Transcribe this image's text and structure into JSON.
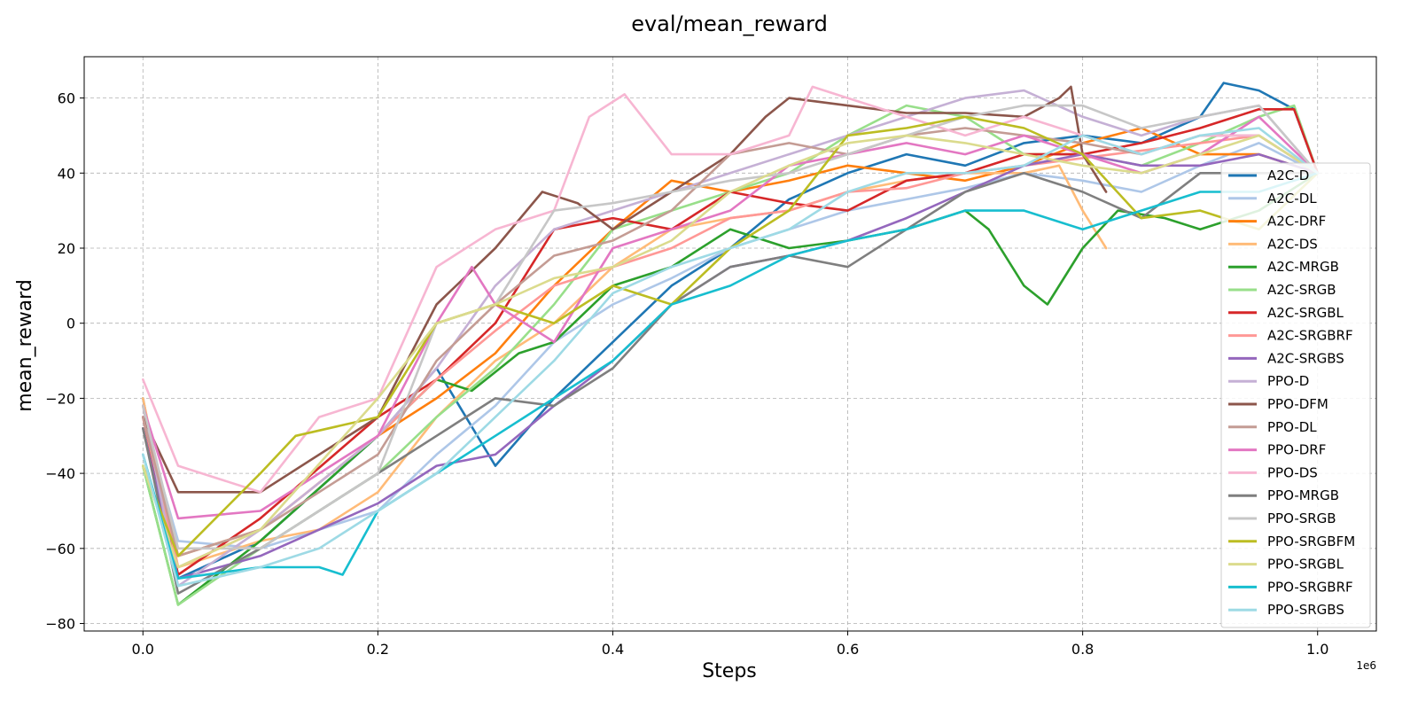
{
  "chart_data": {
    "type": "line",
    "title": "eval/mean_reward",
    "xlabel": "Steps",
    "ylabel": "mean_reward",
    "x_offset_text": "1e6",
    "xlim": [
      -0.05,
      1.05
    ],
    "ylim": [
      -82,
      71
    ],
    "xticks": [
      0.0,
      0.2,
      0.4,
      0.6,
      0.8,
      1.0
    ],
    "xtick_labels": [
      "0.0",
      "0.2",
      "0.4",
      "0.6",
      "0.8",
      "1.0"
    ],
    "yticks": [
      -80,
      -60,
      -40,
      -20,
      0,
      20,
      40,
      60
    ],
    "ytick_labels": [
      "−80",
      "−60",
      "−40",
      "−20",
      "0",
      "20",
      "40",
      "60"
    ],
    "grid": true,
    "legend_position": "right",
    "series": [
      {
        "name": "A2C-D",
        "color": "#1f77b4",
        "x": [
          0,
          0.03,
          0.1,
          0.2,
          0.25,
          0.3,
          0.35,
          0.4,
          0.45,
          0.5,
          0.55,
          0.6,
          0.65,
          0.7,
          0.75,
          0.8,
          0.85,
          0.9,
          0.92,
          0.95,
          0.98,
          1.0
        ],
        "y": [
          -20,
          -68,
          -58,
          -30,
          -12,
          -38,
          -20,
          -5,
          10,
          20,
          33,
          40,
          45,
          42,
          48,
          50,
          48,
          55,
          64,
          62,
          57,
          40
        ]
      },
      {
        "name": "A2C-DL",
        "color": "#aec7e8",
        "x": [
          0,
          0.03,
          0.1,
          0.2,
          0.25,
          0.3,
          0.35,
          0.4,
          0.45,
          0.5,
          0.55,
          0.6,
          0.65,
          0.7,
          0.75,
          0.8,
          0.85,
          0.9,
          0.95,
          1.0
        ],
        "y": [
          -25,
          -58,
          -60,
          -50,
          -35,
          -22,
          -5,
          5,
          12,
          20,
          25,
          30,
          33,
          36,
          40,
          38,
          35,
          42,
          48,
          40
        ]
      },
      {
        "name": "A2C-DRF",
        "color": "#ff7f0e",
        "x": [
          0,
          0.03,
          0.1,
          0.2,
          0.25,
          0.3,
          0.35,
          0.4,
          0.45,
          0.5,
          0.55,
          0.6,
          0.65,
          0.7,
          0.75,
          0.8,
          0.85,
          0.9,
          0.95,
          1.0
        ],
        "y": [
          -22,
          -62,
          -55,
          -30,
          -20,
          -8,
          10,
          25,
          38,
          35,
          38,
          42,
          40,
          38,
          42,
          48,
          52,
          45,
          45,
          40
        ]
      },
      {
        "name": "A2C-DS",
        "color": "#ffbb78",
        "x": [
          0,
          0.03,
          0.1,
          0.15,
          0.2,
          0.25,
          0.3,
          0.35,
          0.4,
          0.45,
          0.5,
          0.55,
          0.6,
          0.65,
          0.7,
          0.75,
          0.78,
          0.8,
          0.82
        ],
        "y": [
          -20,
          -65,
          -58,
          -55,
          -45,
          -25,
          -10,
          0,
          15,
          25,
          28,
          30,
          35,
          38,
          40,
          40,
          42,
          30,
          20
        ]
      },
      {
        "name": "A2C-MRGB",
        "color": "#2ca02c",
        "x": [
          0,
          0.03,
          0.1,
          0.2,
          0.25,
          0.28,
          0.32,
          0.35,
          0.4,
          0.45,
          0.5,
          0.55,
          0.6,
          0.65,
          0.7,
          0.72,
          0.75,
          0.77,
          0.8,
          0.83,
          0.87,
          0.9,
          0.95,
          1.0
        ],
        "y": [
          -38,
          -75,
          -58,
          -30,
          -15,
          -18,
          -8,
          -5,
          10,
          15,
          25,
          20,
          22,
          25,
          30,
          25,
          10,
          5,
          20,
          30,
          28,
          25,
          30,
          40
        ]
      },
      {
        "name": "A2C-SRGB",
        "color": "#98df8a",
        "x": [
          0,
          0.03,
          0.1,
          0.2,
          0.25,
          0.3,
          0.35,
          0.4,
          0.45,
          0.5,
          0.55,
          0.6,
          0.65,
          0.7,
          0.75,
          0.8,
          0.85,
          0.9,
          0.95,
          0.98,
          1.0
        ],
        "y": [
          -38,
          -75,
          -60,
          -40,
          -25,
          -12,
          5,
          25,
          30,
          35,
          40,
          50,
          58,
          55,
          45,
          45,
          42,
          48,
          55,
          58,
          40
        ]
      },
      {
        "name": "A2C-SRGBL",
        "color": "#d62728",
        "x": [
          0,
          0.03,
          0.1,
          0.2,
          0.25,
          0.3,
          0.35,
          0.4,
          0.45,
          0.5,
          0.55,
          0.6,
          0.65,
          0.7,
          0.75,
          0.8,
          0.85,
          0.9,
          0.95,
          0.98,
          1.0
        ],
        "y": [
          -25,
          -67,
          -52,
          -25,
          -15,
          0,
          25,
          28,
          25,
          35,
          32,
          30,
          38,
          40,
          45,
          45,
          48,
          52,
          57,
          57,
          40
        ]
      },
      {
        "name": "A2C-SRGBRF",
        "color": "#ff9896",
        "x": [
          0,
          0.03,
          0.1,
          0.2,
          0.25,
          0.3,
          0.35,
          0.4,
          0.45,
          0.5,
          0.55,
          0.6,
          0.65,
          0.7,
          0.75,
          0.8,
          0.85,
          0.9,
          0.95,
          1.0
        ],
        "y": [
          -25,
          -65,
          -55,
          -30,
          -15,
          -2,
          10,
          15,
          20,
          28,
          30,
          35,
          36,
          40,
          42,
          44,
          46,
          48,
          50,
          40
        ]
      },
      {
        "name": "A2C-SRGBS",
        "color": "#9467bd",
        "x": [
          0,
          0.03,
          0.1,
          0.2,
          0.25,
          0.3,
          0.35,
          0.4,
          0.45,
          0.5,
          0.55,
          0.6,
          0.65,
          0.7,
          0.75,
          0.8,
          0.85,
          0.9,
          0.95,
          1.0
        ],
        "y": [
          -28,
          -68,
          -62,
          -48,
          -38,
          -35,
          -22,
          -10,
          5,
          15,
          18,
          22,
          28,
          35,
          42,
          45,
          42,
          42,
          45,
          40
        ]
      },
      {
        "name": "PPO-D",
        "color": "#c5b0d5",
        "x": [
          0,
          0.03,
          0.1,
          0.2,
          0.25,
          0.3,
          0.35,
          0.4,
          0.45,
          0.5,
          0.55,
          0.6,
          0.65,
          0.7,
          0.75,
          0.8,
          0.85,
          0.9,
          0.95,
          1.0
        ],
        "y": [
          -22,
          -70,
          -55,
          -30,
          -12,
          10,
          25,
          30,
          35,
          40,
          45,
          50,
          55,
          60,
          62,
          55,
          50,
          55,
          58,
          40
        ]
      },
      {
        "name": "PPO-DFM",
        "color": "#8c564b",
        "x": [
          0,
          0.03,
          0.1,
          0.2,
          0.25,
          0.3,
          0.34,
          0.37,
          0.4,
          0.45,
          0.5,
          0.53,
          0.55,
          0.6,
          0.65,
          0.7,
          0.75,
          0.78,
          0.79,
          0.8,
          0.82
        ],
        "y": [
          -25,
          -45,
          -45,
          -25,
          5,
          20,
          35,
          32,
          25,
          35,
          45,
          55,
          60,
          58,
          56,
          56,
          55,
          60,
          63,
          45,
          35
        ]
      },
      {
        "name": "PPO-DL",
        "color": "#c49c94",
        "x": [
          0,
          0.03,
          0.1,
          0.2,
          0.25,
          0.3,
          0.35,
          0.4,
          0.45,
          0.5,
          0.55,
          0.6,
          0.65,
          0.7,
          0.75,
          0.8,
          0.85,
          0.9,
          0.95,
          1.0
        ],
        "y": [
          -25,
          -62,
          -55,
          -35,
          -10,
          5,
          18,
          22,
          30,
          45,
          48,
          45,
          50,
          52,
          50,
          48,
          45,
          50,
          50,
          40
        ]
      },
      {
        "name": "PPO-DRF",
        "color": "#e377c2",
        "x": [
          0,
          0.03,
          0.1,
          0.2,
          0.25,
          0.28,
          0.3,
          0.35,
          0.4,
          0.45,
          0.5,
          0.55,
          0.6,
          0.65,
          0.7,
          0.75,
          0.8,
          0.85,
          0.9,
          0.95,
          1.0
        ],
        "y": [
          -22,
          -52,
          -50,
          -30,
          0,
          15,
          5,
          -5,
          20,
          25,
          30,
          42,
          45,
          48,
          45,
          50,
          45,
          40,
          45,
          55,
          40
        ]
      },
      {
        "name": "PPO-DS",
        "color": "#f7b6d2",
        "x": [
          0,
          0.03,
          0.1,
          0.15,
          0.2,
          0.25,
          0.3,
          0.35,
          0.38,
          0.41,
          0.45,
          0.5,
          0.55,
          0.57,
          0.6,
          0.65,
          0.7,
          0.75,
          0.8,
          0.85,
          0.9,
          0.95,
          1.0
        ],
        "y": [
          -15,
          -38,
          -45,
          -25,
          -20,
          15,
          25,
          30,
          55,
          61,
          45,
          45,
          50,
          63,
          60,
          55,
          50,
          55,
          50,
          45,
          50,
          50,
          40
        ]
      },
      {
        "name": "PPO-MRGB",
        "color": "#7f7f7f",
        "x": [
          0,
          0.03,
          0.1,
          0.2,
          0.25,
          0.3,
          0.35,
          0.4,
          0.45,
          0.5,
          0.55,
          0.6,
          0.65,
          0.7,
          0.75,
          0.8,
          0.85,
          0.9,
          0.95,
          1.0
        ],
        "y": [
          -28,
          -72,
          -60,
          -40,
          -30,
          -20,
          -22,
          -12,
          5,
          15,
          18,
          15,
          25,
          35,
          40,
          35,
          28,
          40,
          40,
          40
        ]
      },
      {
        "name": "PPO-SRGB",
        "color": "#c7c7c7",
        "x": [
          0,
          0.03,
          0.1,
          0.2,
          0.25,
          0.3,
          0.35,
          0.4,
          0.45,
          0.5,
          0.55,
          0.6,
          0.65,
          0.7,
          0.75,
          0.8,
          0.85,
          0.9,
          0.95,
          1.0
        ],
        "y": [
          -22,
          -60,
          -60,
          -40,
          0,
          5,
          30,
          32,
          35,
          38,
          40,
          45,
          50,
          55,
          58,
          58,
          52,
          55,
          58,
          40
        ]
      },
      {
        "name": "PPO-SRGBFM",
        "color": "#bcbd22",
        "x": [
          0,
          0.03,
          0.1,
          0.13,
          0.2,
          0.25,
          0.3,
          0.35,
          0.4,
          0.45,
          0.5,
          0.55,
          0.6,
          0.65,
          0.7,
          0.75,
          0.8,
          0.85,
          0.9,
          0.95,
          1.0
        ],
        "y": [
          -38,
          -62,
          -40,
          -30,
          -25,
          0,
          5,
          0,
          10,
          5,
          20,
          30,
          50,
          52,
          55,
          52,
          45,
          28,
          30,
          25,
          40
        ]
      },
      {
        "name": "PPO-SRGBL",
        "color": "#dbdb8d",
        "x": [
          0,
          0.03,
          0.1,
          0.2,
          0.25,
          0.3,
          0.35,
          0.4,
          0.45,
          0.5,
          0.55,
          0.6,
          0.65,
          0.7,
          0.75,
          0.8,
          0.85,
          0.9,
          0.95,
          1.0
        ],
        "y": [
          -38,
          -65,
          -55,
          -20,
          0,
          5,
          12,
          15,
          22,
          35,
          42,
          48,
          50,
          48,
          45,
          42,
          40,
          45,
          50,
          40
        ]
      },
      {
        "name": "PPO-SRGBRF",
        "color": "#17becf",
        "x": [
          0,
          0.03,
          0.1,
          0.15,
          0.17,
          0.2,
          0.25,
          0.3,
          0.35,
          0.4,
          0.45,
          0.5,
          0.55,
          0.6,
          0.65,
          0.7,
          0.75,
          0.8,
          0.85,
          0.9,
          0.95,
          1.0
        ],
        "y": [
          -35,
          -68,
          -65,
          -65,
          -67,
          -50,
          -40,
          -30,
          -20,
          -10,
          5,
          10,
          18,
          22,
          25,
          30,
          30,
          25,
          30,
          35,
          35,
          40
        ]
      },
      {
        "name": "PPO-SRGBS",
        "color": "#9edae5",
        "x": [
          0,
          0.03,
          0.1,
          0.15,
          0.2,
          0.25,
          0.3,
          0.35,
          0.4,
          0.45,
          0.5,
          0.55,
          0.6,
          0.65,
          0.7,
          0.75,
          0.8,
          0.85,
          0.9,
          0.95,
          1.0
        ],
        "y": [
          -35,
          -70,
          -65,
          -60,
          -50,
          -40,
          -25,
          -10,
          8,
          15,
          20,
          25,
          35,
          40,
          40,
          42,
          50,
          45,
          50,
          52,
          40
        ]
      }
    ]
  }
}
